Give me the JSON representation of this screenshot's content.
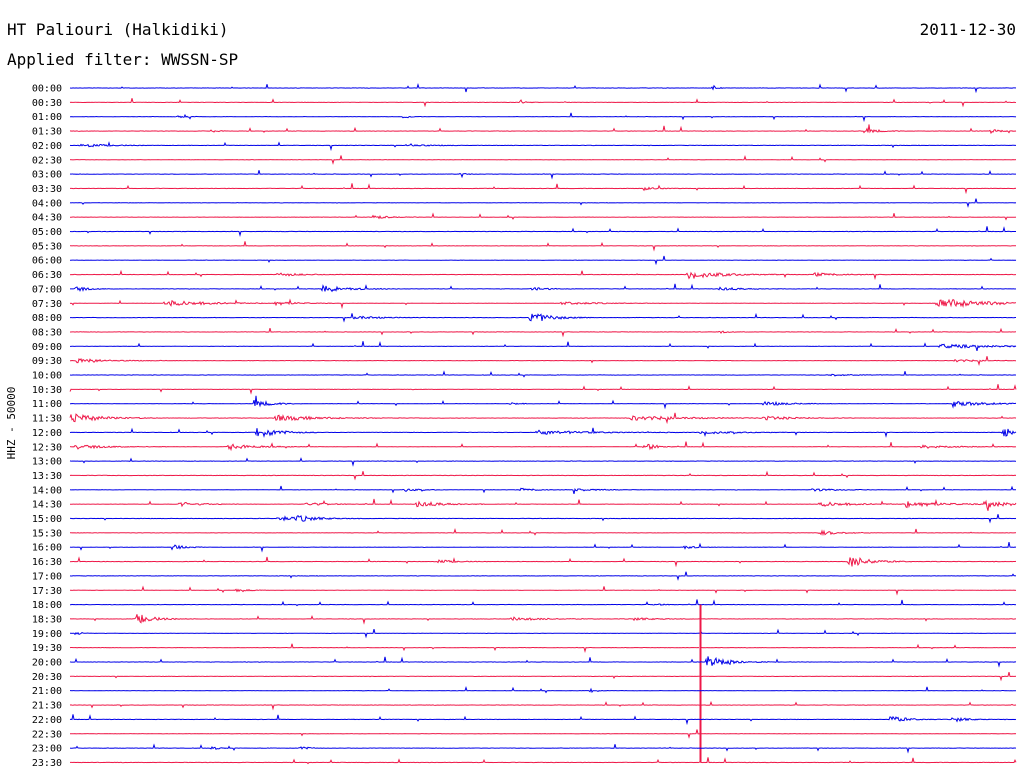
{
  "header": {
    "station": "HT Paliouri (Halkidiki)",
    "date": "2011-12-30",
    "filter": "Applied filter: WWSSN-SP"
  },
  "chart_data": {
    "type": "line",
    "ylabel": "HHZ - 50000",
    "x_range_min": [
      0,
      30
    ],
    "trace_colors": [
      "#0000e8",
      "#ee1848"
    ],
    "rows": [
      "00:00",
      "00:30",
      "01:00",
      "01:30",
      "02:00",
      "02:30",
      "03:00",
      "03:30",
      "04:00",
      "04:30",
      "05:00",
      "05:30",
      "06:00",
      "06:30",
      "07:00",
      "07:30",
      "08:00",
      "08:30",
      "09:00",
      "09:30",
      "10:00",
      "10:30",
      "11:00",
      "11:30",
      "12:00",
      "12:30",
      "13:00",
      "13:30",
      "14:00",
      "14:30",
      "15:00",
      "15:30",
      "16:00",
      "16:30",
      "17:00",
      "17:30",
      "18:00",
      "18:30",
      "19:00",
      "19:30",
      "20:00",
      "20:30",
      "21:00",
      "21:30",
      "22:00",
      "22:30",
      "23:00",
      "23:30"
    ],
    "events": [
      {
        "row": 0,
        "minute": 20.4,
        "amp": 0.5,
        "dur": 0.2
      },
      {
        "row": 1,
        "minute": 14.3,
        "amp": 0.35,
        "dur": 0.3
      },
      {
        "row": 2,
        "minute": 3.4,
        "amp": 0.25,
        "dur": 0.4
      },
      {
        "row": 2,
        "minute": 10.6,
        "amp": 0.35,
        "dur": 0.3
      },
      {
        "row": 3,
        "minute": 4.5,
        "amp": 0.3,
        "dur": 0.3
      },
      {
        "row": 3,
        "minute": 25.2,
        "amp": 0.5,
        "dur": 0.6
      },
      {
        "row": 3,
        "minute": 29.2,
        "amp": 0.4,
        "dur": 0.4
      },
      {
        "row": 4,
        "minute": 0.3,
        "amp": 0.35,
        "dur": 1.2
      },
      {
        "row": 4,
        "minute": 10.7,
        "amp": 0.3,
        "dur": 0.8
      },
      {
        "row": 6,
        "minute": 12.4,
        "amp": 0.25,
        "dur": 0.2
      },
      {
        "row": 7,
        "minute": 18.2,
        "amp": 0.3,
        "dur": 0.6
      },
      {
        "row": 9,
        "minute": 9.6,
        "amp": 0.3,
        "dur": 0.8
      },
      {
        "row": 13,
        "minute": 6.6,
        "amp": 0.3,
        "dur": 1.2
      },
      {
        "row": 13,
        "minute": 19.6,
        "amp": 0.7,
        "dur": 1.6
      },
      {
        "row": 13,
        "minute": 23.6,
        "amp": 0.3,
        "dur": 1.2
      },
      {
        "row": 14,
        "minute": 0.2,
        "amp": 0.5,
        "dur": 0.5
      },
      {
        "row": 14,
        "minute": 8.0,
        "amp": 0.6,
        "dur": 1.2
      },
      {
        "row": 14,
        "minute": 14.6,
        "amp": 0.3,
        "dur": 0.8
      },
      {
        "row": 14,
        "minute": 20.6,
        "amp": 0.3,
        "dur": 1.0
      },
      {
        "row": 15,
        "minute": 3.0,
        "amp": 0.5,
        "dur": 2.0
      },
      {
        "row": 15,
        "minute": 6.5,
        "amp": 0.3,
        "dur": 1.0
      },
      {
        "row": 15,
        "minute": 15.6,
        "amp": 0.25,
        "dur": 1.5
      },
      {
        "row": 15,
        "minute": 27.5,
        "amp": 0.9,
        "dur": 2.2
      },
      {
        "row": 16,
        "minute": 9.0,
        "amp": 0.3,
        "dur": 1.2
      },
      {
        "row": 16,
        "minute": 14.6,
        "amp": 1.0,
        "dur": 1.0
      },
      {
        "row": 17,
        "minute": 20.6,
        "amp": 0.2,
        "dur": 0.4
      },
      {
        "row": 18,
        "minute": 27.6,
        "amp": 0.35,
        "dur": 2.4
      },
      {
        "row": 19,
        "minute": 0.2,
        "amp": 0.35,
        "dur": 1.5
      },
      {
        "row": 19,
        "minute": 28.0,
        "amp": 0.25,
        "dur": 1.0
      },
      {
        "row": 20,
        "minute": 24.0,
        "amp": 0.2,
        "dur": 1.0
      },
      {
        "row": 22,
        "minute": 5.8,
        "amp": 0.7,
        "dur": 0.8
      },
      {
        "row": 22,
        "minute": 14.0,
        "amp": 0.25,
        "dur": 0.4
      },
      {
        "row": 22,
        "minute": 22.0,
        "amp": 0.35,
        "dur": 1.2
      },
      {
        "row": 22,
        "minute": 28.0,
        "amp": 0.5,
        "dur": 1.5
      },
      {
        "row": 23,
        "minute": 0.0,
        "amp": 0.8,
        "dur": 1.4
      },
      {
        "row": 23,
        "minute": 6.5,
        "amp": 0.5,
        "dur": 2.0
      },
      {
        "row": 23,
        "minute": 17.8,
        "amp": 0.4,
        "dur": 2.5
      },
      {
        "row": 23,
        "minute": 22.0,
        "amp": 0.3,
        "dur": 1.5
      },
      {
        "row": 24,
        "minute": 5.9,
        "amp": 1.0,
        "dur": 1.0
      },
      {
        "row": 24,
        "minute": 14.8,
        "amp": 0.35,
        "dur": 2.5
      },
      {
        "row": 24,
        "minute": 20.0,
        "amp": 0.3,
        "dur": 1.5
      },
      {
        "row": 24,
        "minute": 29.6,
        "amp": 0.8,
        "dur": 0.8
      },
      {
        "row": 25,
        "minute": 0.2,
        "amp": 0.35,
        "dur": 1.5
      },
      {
        "row": 25,
        "minute": 5.0,
        "amp": 0.5,
        "dur": 1.3
      },
      {
        "row": 25,
        "minute": 18.2,
        "amp": 0.8,
        "dur": 0.5
      },
      {
        "row": 25,
        "minute": 27.0,
        "amp": 0.3,
        "dur": 1.5
      },
      {
        "row": 28,
        "minute": 10.6,
        "amp": 0.3,
        "dur": 0.6
      },
      {
        "row": 28,
        "minute": 14.3,
        "amp": 0.25,
        "dur": 0.8
      },
      {
        "row": 28,
        "minute": 16.0,
        "amp": 0.25,
        "dur": 1.0
      },
      {
        "row": 28,
        "minute": 23.5,
        "amp": 0.25,
        "dur": 1.2
      },
      {
        "row": 29,
        "minute": 3.5,
        "amp": 0.35,
        "dur": 1.0
      },
      {
        "row": 29,
        "minute": 7.5,
        "amp": 0.3,
        "dur": 1.0
      },
      {
        "row": 29,
        "minute": 11.0,
        "amp": 0.5,
        "dur": 1.2
      },
      {
        "row": 29,
        "minute": 23.8,
        "amp": 0.4,
        "dur": 1.5
      },
      {
        "row": 29,
        "minute": 26.5,
        "amp": 0.6,
        "dur": 1.5
      },
      {
        "row": 29,
        "minute": 29.0,
        "amp": 0.6,
        "dur": 1.2
      },
      {
        "row": 30,
        "minute": 6.6,
        "amp": 0.4,
        "dur": 1.0
      },
      {
        "row": 30,
        "minute": 7.2,
        "amp": 0.45,
        "dur": 1.0
      },
      {
        "row": 31,
        "minute": 23.8,
        "amp": 0.35,
        "dur": 1.0
      },
      {
        "row": 32,
        "minute": 3.3,
        "amp": 0.4,
        "dur": 0.5
      },
      {
        "row": 32,
        "minute": 19.5,
        "amp": 0.3,
        "dur": 0.5
      },
      {
        "row": 33,
        "minute": 11.7,
        "amp": 0.3,
        "dur": 0.8
      },
      {
        "row": 33,
        "minute": 24.7,
        "amp": 1.0,
        "dur": 1.0
      },
      {
        "row": 35,
        "minute": 5.3,
        "amp": 0.35,
        "dur": 0.5
      },
      {
        "row": 36,
        "minute": 18.5,
        "amp": 0.25,
        "dur": 0.4
      },
      {
        "row": 37,
        "minute": 2.1,
        "amp": 0.8,
        "dur": 0.9
      },
      {
        "row": 37,
        "minute": 14.0,
        "amp": 0.3,
        "dur": 1.5
      },
      {
        "row": 37,
        "minute": 17.8,
        "amp": 0.25,
        "dur": 1.0
      },
      {
        "row": 38,
        "minute": 0.2,
        "amp": 0.3,
        "dur": 0.3
      },
      {
        "row": 40,
        "minute": 20.2,
        "amp": 1.0,
        "dur": 1.0
      },
      {
        "row": 42,
        "minute": 16.5,
        "amp": 0.4,
        "dur": 0.3
      },
      {
        "row": 44,
        "minute": 26.0,
        "amp": 0.6,
        "dur": 0.8
      },
      {
        "row": 44,
        "minute": 28.0,
        "amp": 0.5,
        "dur": 0.6
      },
      {
        "row": 46,
        "minute": 4.5,
        "amp": 0.3,
        "dur": 0.4
      },
      {
        "row": 46,
        "minute": 7.3,
        "amp": 0.3,
        "dur": 0.4
      }
    ],
    "spikes": [
      {
        "row": 39,
        "minute": 20.0,
        "up": 3.0,
        "down": 8.0
      }
    ]
  }
}
